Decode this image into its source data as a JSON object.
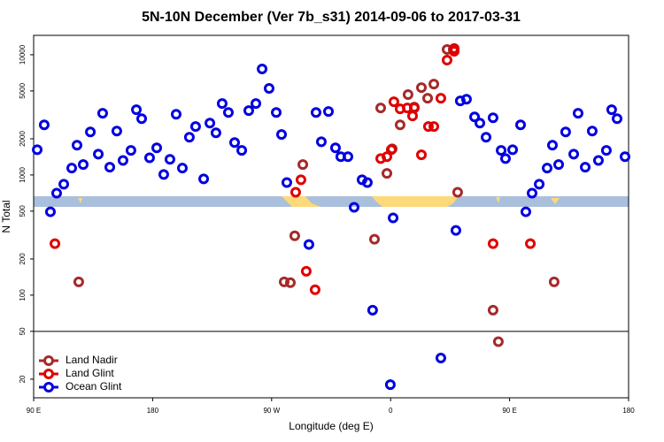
{
  "chart_data": {
    "type": "scatter",
    "title": "5N-10N December (Ver 7b_s31)   2014-09-06 to 2017-03-31",
    "x_label": "Longitude (deg E)",
    "y_label": "N Total",
    "log_y": true,
    "legend": "bottom-left",
    "reference_line": 50,
    "xlim": [
      90,
      540
    ],
    "ylim": [
      14,
      14500
    ],
    "xticks": [
      {
        "value": 90,
        "label": "90 E"
      },
      180,
      {
        "value": 270,
        "label": "90 W"
      },
      {
        "value": 360,
        "label": "0"
      },
      {
        "value": 450,
        "label": "90 E"
      },
      {
        "value": 540,
        "label": "180"
      }
    ],
    "yticks": [
      20,
      50,
      100,
      200,
      500,
      1000,
      2000,
      5000,
      10000
    ],
    "series": [
      {
        "name": "Land Nadir",
        "color": "#a52a2a",
        "x": [
          124.1,
          279.5,
          284.2,
          287.5,
          293.6,
          347.8,
          352.5,
          357.2,
          361.2,
          367.2,
          373.2,
          377.9,
          383.3,
          388.0,
          392.7,
          402.7,
          407.4,
          410.7,
          437.5,
          441.5,
          483.7
        ],
        "values": [
          129,
          129,
          127,
          312,
          1220,
          292,
          3610,
          1030,
          1650,
          2610,
          4660,
          3670,
          5330,
          4350,
          5700,
          11070,
          11070,
          718,
          75,
          41,
          129
        ]
      },
      {
        "name": "Land Glint",
        "color": "#e00000",
        "x": [
          106.1,
          288.2,
          292.2,
          296.2,
          302.9,
          352.5,
          357.2,
          360.5,
          362.5,
          367.2,
          372.6,
          376.6,
          377.9,
          383.3,
          388.6,
          392.7,
          398.0,
          402.7,
          408.1,
          408.1,
          437.5,
          465.7
        ],
        "values": [
          268,
          718,
          911,
          158,
          111,
          1370,
          1420,
          1620,
          4060,
          3550,
          3610,
          3100,
          3610,
          1470,
          2530,
          2530,
          4350,
          9030,
          11270,
          10700,
          268,
          268
        ]
      },
      {
        "name": "Ocean Glint",
        "color": "#0000e0",
        "x": [
          92.7,
          98.0,
          102.7,
          107.4,
          112.8,
          118.8,
          122.8,
          127.5,
          132.9,
          138.9,
          142.2,
          147.6,
          152.9,
          157.6,
          163.6,
          167.7,
          171.7,
          177.7,
          183.1,
          188.4,
          193.1,
          197.8,
          202.5,
          207.8,
          212.5,
          218.6,
          223.3,
          227.9,
          232.6,
          237.3,
          242.0,
          247.4,
          252.7,
          258.1,
          262.8,
          268.1,
          273.5,
          277.5,
          281.5,
          298.2,
          303.6,
          307.6,
          313.0,
          318.3,
          322.3,
          327.7,
          332.4,
          338.4,
          342.4,
          346.4,
          359.8,
          361.9,
          398.0,
          409.4,
          412.7,
          417.4,
          423.5,
          427.5,
          432.2,
          437.5,
          443.6,
          446.9,
          452.3,
          458.3,
          462.3,
          467.0,
          472.4,
          478.4,
          482.4,
          487.1,
          492.4,
          498.5,
          501.8,
          507.2,
          512.5,
          517.2,
          523.2,
          527.2,
          531.3,
          537.3
        ],
        "values": [
          1620,
          2610,
          494,
          706,
          837,
          1140,
          1770,
          1220,
          2280,
          1490,
          3260,
          1160,
          2320,
          1320,
          1600,
          3490,
          2940,
          1390,
          1680,
          1010,
          1350,
          3200,
          1140,
          2060,
          2530,
          927,
          2700,
          2240,
          3930,
          3310,
          1860,
          1600,
          3430,
          3930,
          7620,
          5250,
          3310,
          2170,
          865,
          264,
          3310,
          1890,
          3370,
          1680,
          1420,
          1420,
          538,
          911,
          865,
          75,
          18,
          439,
          30,
          346,
          4130,
          4270,
          3040,
          2700,
          2060,
          2990,
          1600,
          1370,
          1620,
          2610,
          494,
          706,
          837,
          1140,
          1770,
          1220,
          2280,
          1490,
          3260,
          1160,
          2320,
          1320,
          1600,
          3490,
          2940,
          1420
        ]
      }
    ]
  }
}
